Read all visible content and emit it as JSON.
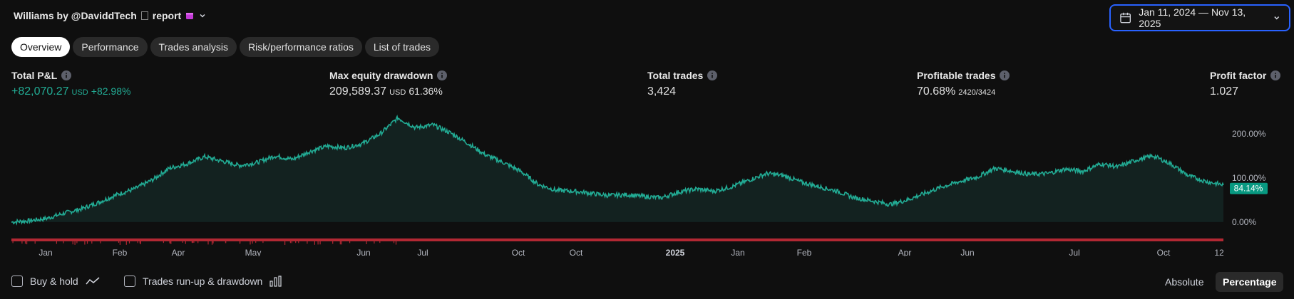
{
  "header": {
    "title": "Williams by @DaviddTech",
    "title_suffix": "report",
    "date_range": "Jan 11, 2024 — Nov 13, 2025"
  },
  "tabs": [
    {
      "label": "Overview",
      "active": true
    },
    {
      "label": "Performance"
    },
    {
      "label": "Trades analysis"
    },
    {
      "label": "Risk/performance ratios"
    },
    {
      "label": "List of trades"
    }
  ],
  "metrics": {
    "total_pnl": {
      "label": "Total P&L",
      "value": "+82,070.27",
      "unit": "USD",
      "percent": "+82.98%"
    },
    "max_drawdown": {
      "label": "Max equity drawdown",
      "value": "209,589.37",
      "unit": "USD",
      "percent": "61.36%"
    },
    "total_trades": {
      "label": "Total trades",
      "value": "3,424"
    },
    "profitable_trades": {
      "label": "Profitable trades",
      "value": "70.68%",
      "ratio": "2420/3424"
    },
    "profit_factor": {
      "label": "Profit factor",
      "value": "1.027"
    }
  },
  "chart_data": {
    "type": "area",
    "y_ticks": [
      "200.00%",
      "100.00%",
      "0.00%"
    ],
    "y_tick_values": [
      200,
      100,
      0
    ],
    "ylim": [
      -5,
      245
    ],
    "current_value_label": "84.14%",
    "current_value": 84.14,
    "x_labels": [
      "Jan",
      "Feb",
      "Apr",
      "May",
      "Jun",
      "Jul",
      "Oct",
      "Oct",
      "2025",
      "Jan",
      "Feb",
      "Apr",
      "Jun",
      "Jul",
      "Oct",
      "12"
    ],
    "x_label_bold_index": 8,
    "series": [
      {
        "points": [
          0,
          3,
          8,
          20,
          30,
          45,
          62,
          75,
          95,
          122,
          132,
          148,
          138,
          128,
          135,
          150,
          142,
          160,
          172,
          168,
          178,
          200,
          236,
          214,
          220,
          202,
          178,
          152,
          135,
          115,
          85,
          72,
          70,
          65,
          60,
          62,
          58,
          55,
          68,
          75,
          70,
          80,
          95,
          110,
          105,
          90,
          80,
          70,
          55,
          48,
          40,
          50,
          65,
          80,
          92,
          102,
          122,
          115,
          108,
          110,
          120,
          115,
          132,
          125,
          140,
          150,
          132,
          105,
          92,
          84
        ]
      }
    ],
    "line_color": "#22ab94",
    "fill_color": "#132220"
  },
  "bottom": {
    "buy_hold": "Buy & hold",
    "trades_runup": "Trades run-up & drawdown",
    "absolute": "Absolute",
    "percentage": "Percentage"
  }
}
